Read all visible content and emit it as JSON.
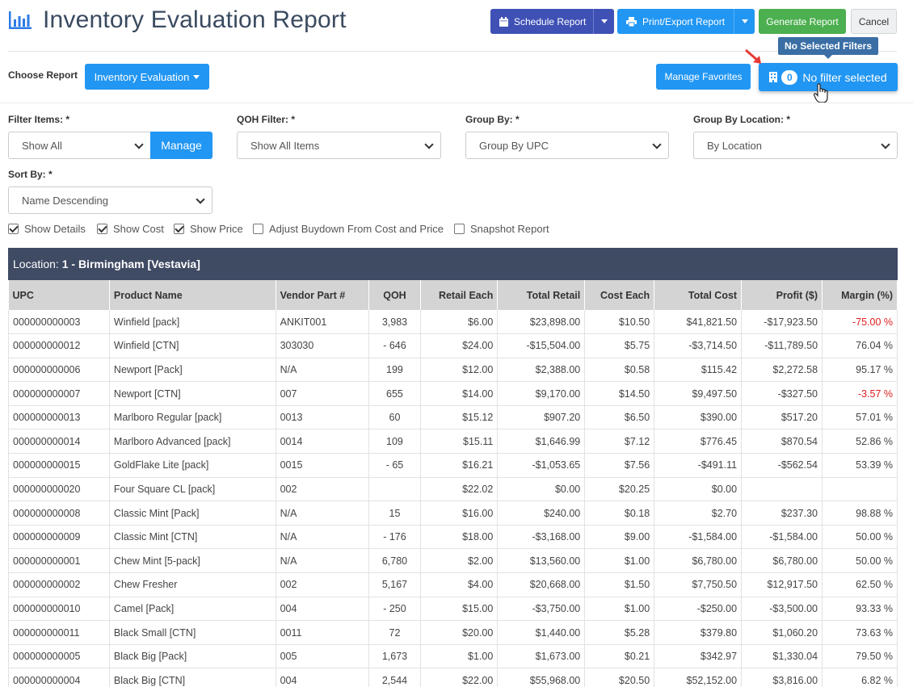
{
  "header": {
    "title": "Inventory Evaluation Report",
    "schedule_label": "Schedule Report",
    "print_label": "Print/Export Report",
    "generate_label": "Generate Report",
    "cancel_label": "Cancel",
    "tooltip": "No Selected Filters"
  },
  "toolbar": {
    "choose_report_label": "Choose Report",
    "report_value": "Inventory Evaluation",
    "favorites_label": "Manage Favorites",
    "filter_count": "0",
    "filter_label": "No filter selected"
  },
  "filters": {
    "filter_items_label": "Filter Items: *",
    "filter_items_value": "Show All",
    "manage_label": "Manage",
    "qoh_label": "QOH Filter: *",
    "qoh_value": "Show All Items",
    "group_by_label": "Group By: *",
    "group_by_value": "Group By UPC",
    "group_loc_label": "Group By Location: *",
    "group_loc_value": "By Location",
    "sort_label": "Sort By: *",
    "sort_value": "Name Descending"
  },
  "options": [
    {
      "label": "Show Details",
      "checked": true
    },
    {
      "label": "Show Cost",
      "checked": true
    },
    {
      "label": "Show Price",
      "checked": true
    },
    {
      "label": "Adjust Buydown From Cost and Price",
      "checked": false
    },
    {
      "label": "Snapshot Report",
      "checked": false
    }
  ],
  "table": {
    "location_prefix": "Location:",
    "location_name": "1 - Birmingham [Vestavia]",
    "columns": [
      "UPC",
      "Product Name",
      "Vendor Part #",
      "QOH",
      "Retail Each",
      "Total Retail",
      "Cost Each",
      "Total Cost",
      "Profit ($)",
      "Margin (%)"
    ],
    "rows": [
      [
        "000000000003",
        "Winfield [pack]",
        "ANKIT001",
        "3,983",
        "$6.00",
        "$23,898.00",
        "$10.50",
        "$41,821.50",
        "-$17,923.50",
        "-75.00 %"
      ],
      [
        "000000000012",
        "Winfield [CTN]",
        "303030",
        "- 646",
        "$24.00",
        "-$15,504.00",
        "$5.75",
        "-$3,714.50",
        "-$11,789.50",
        "76.04 %"
      ],
      [
        "000000000006",
        "Newport [Pack]",
        "N/A",
        "199",
        "$12.00",
        "$2,388.00",
        "$0.58",
        "$115.42",
        "$2,272.58",
        "95.17 %"
      ],
      [
        "000000000007",
        "Newport [CTN]",
        "007",
        "655",
        "$14.00",
        "$9,170.00",
        "$14.50",
        "$9,497.50",
        "-$327.50",
        "-3.57 %"
      ],
      [
        "000000000013",
        "Marlboro Regular [pack]",
        "0013",
        "60",
        "$15.12",
        "$907.20",
        "$6.50",
        "$390.00",
        "$517.20",
        "57.01 %"
      ],
      [
        "000000000014",
        "Marlboro Advanced [pack]",
        "0014",
        "109",
        "$15.11",
        "$1,646.99",
        "$7.12",
        "$776.45",
        "$870.54",
        "52.86 %"
      ],
      [
        "000000000015",
        "GoldFlake Lite [pack]",
        "0015",
        "- 65",
        "$16.21",
        "-$1,053.65",
        "$7.56",
        "-$491.11",
        "-$562.54",
        "53.39 %"
      ],
      [
        "000000000020",
        "Four Square CL [pack]",
        "002",
        "",
        "$22.02",
        "$0.00",
        "$20.25",
        "$0.00",
        "",
        ""
      ],
      [
        "000000000008",
        "Classic Mint [Pack]",
        "N/A",
        "15",
        "$16.00",
        "$240.00",
        "$0.18",
        "$2.70",
        "$237.30",
        "98.88 %"
      ],
      [
        "000000000009",
        "Classic Mint [CTN]",
        "N/A",
        "- 176",
        "$18.00",
        "-$3,168.00",
        "$9.00",
        "-$1,584.00",
        "-$1,584.00",
        "50.00 %"
      ],
      [
        "000000000001",
        "Chew Mint [5-pack]",
        "N/A",
        "6,780",
        "$2.00",
        "$13,560.00",
        "$1.00",
        "$6,780.00",
        "$6,780.00",
        "50.00 %"
      ],
      [
        "000000000002",
        "Chew Fresher",
        "002",
        "5,167",
        "$4.00",
        "$20,668.00",
        "$1.50",
        "$7,750.50",
        "$12,917.50",
        "62.50 %"
      ],
      [
        "000000000010",
        "Camel [Pack]",
        "004",
        "- 250",
        "$15.00",
        "-$3,750.00",
        "$1.00",
        "-$250.00",
        "-$3,500.00",
        "93.33 %"
      ],
      [
        "000000000011",
        "Black Small [CTN]",
        "0011",
        "72",
        "$20.00",
        "$1,440.00",
        "$5.28",
        "$379.80",
        "$1,060.20",
        "73.63 %"
      ],
      [
        "000000000005",
        "Black Big [Pack]",
        "005",
        "1,673",
        "$1.00",
        "$1,673.00",
        "$0.21",
        "$342.97",
        "$1,330.04",
        "79.50 %"
      ],
      [
        "000000000004",
        "Black Big [CTN]",
        "004",
        "2,544",
        "$22.00",
        "$55,968.00",
        "$20.50",
        "$52,152.00",
        "$3,816.00",
        "6.82 %"
      ]
    ]
  },
  "colors": {
    "primary": "#2196f3",
    "indigo": "#3f51b5",
    "green": "#4caf50",
    "table_header": "#3f4a63",
    "negative": "#e02020"
  }
}
